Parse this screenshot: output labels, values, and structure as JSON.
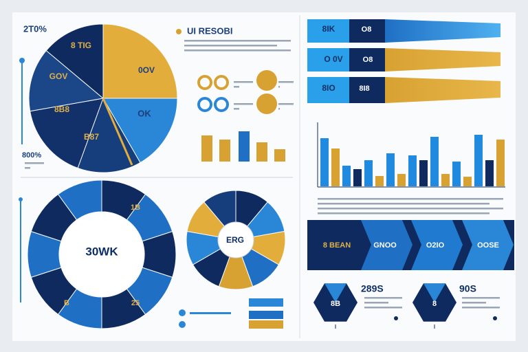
{
  "header": {
    "stat": "2T0%",
    "title": "UI RESOBI"
  },
  "pie_labels": [
    "8 TIG",
    "GOV",
    "0OV",
    "OK",
    "8B8",
    "B87"
  ],
  "side_stat": "800%",
  "banners": [
    [
      "8IK",
      "O8"
    ],
    [
      "O 0V",
      "O8"
    ],
    [
      "8IO",
      "8I8"
    ]
  ],
  "donut": {
    "center": "30WK",
    "labels": [
      "1B",
      "B",
      "25"
    ]
  },
  "pie2_center": "ERG",
  "band": [
    "8 BEAN",
    "GNOO",
    "O2IO",
    "OOSE"
  ],
  "hex": [
    {
      "label": "8B",
      "stat": "289S"
    },
    {
      "label": "8",
      "stat": "90S"
    }
  ]
}
